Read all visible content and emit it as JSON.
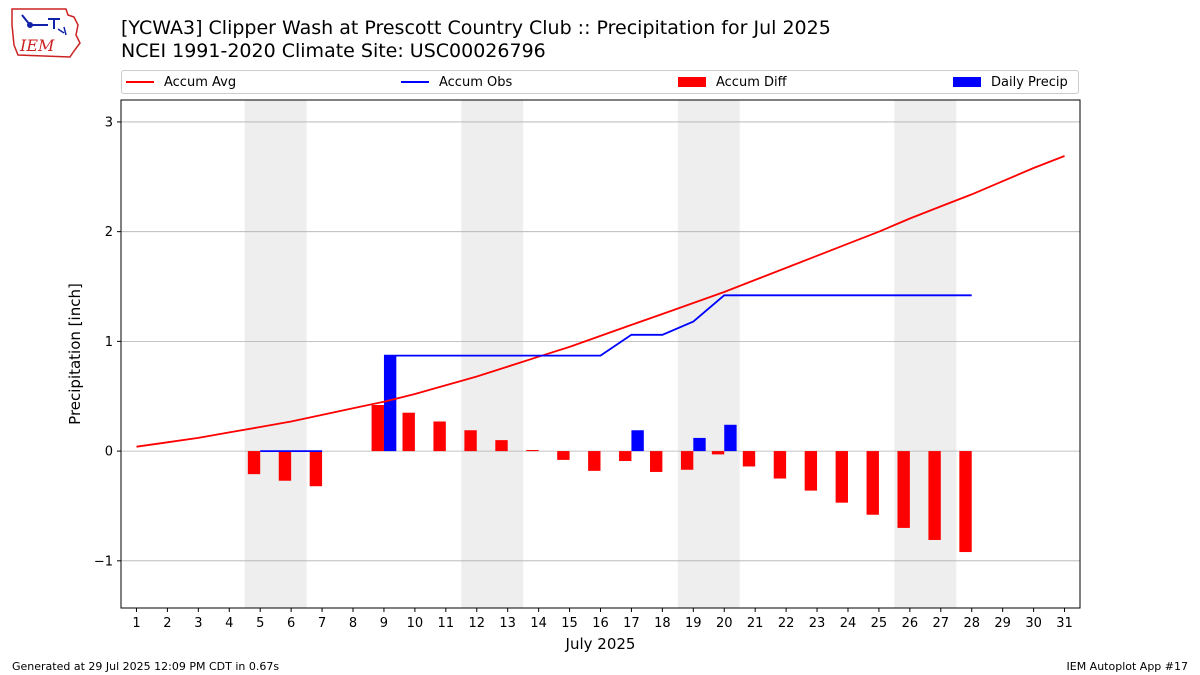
{
  "header": {
    "title": "[YCWA3] Clipper Wash at Prescott Country Club :: Precipitation for Jul 2025",
    "subtitle": "NCEI 1991-2020 Climate Site: USC00026796",
    "logo_text": "IEM"
  },
  "footer": {
    "left": "Generated at 29 Jul 2025 12:09 PM CDT in 0.67s",
    "right": "IEM Autoplot App #17"
  },
  "colors": {
    "accum_avg": "#ff0000",
    "accum_obs": "#0000ff",
    "accum_diff": "#ff0000",
    "daily_precip": "#0000ff",
    "weekend_shade": "#eeeeee",
    "grid": "#b0b0b0"
  },
  "chart_data": {
    "type": "bar",
    "xlabel": "July 2025",
    "ylabel": "Precipitation [inch]",
    "xlim": [
      0.5,
      31.5
    ],
    "ylim": [
      -1.43,
      3.2
    ],
    "yticks": [
      -1,
      0,
      1,
      2,
      3
    ],
    "ytick_labels": [
      "−1",
      "0",
      "1",
      "2",
      "3"
    ],
    "x": [
      1,
      2,
      3,
      4,
      5,
      6,
      7,
      8,
      9,
      10,
      11,
      12,
      13,
      14,
      15,
      16,
      17,
      18,
      19,
      20,
      21,
      22,
      23,
      24,
      25,
      26,
      27,
      28,
      29,
      30,
      31
    ],
    "xtick_labels": [
      "1",
      "2",
      "3",
      "4",
      "5",
      "6",
      "7",
      "8",
      "9",
      "10",
      "11",
      "12",
      "13",
      "14",
      "15",
      "16",
      "17",
      "18",
      "19",
      "20",
      "21",
      "22",
      "23",
      "24",
      "25",
      "26",
      "27",
      "28",
      "29",
      "30",
      "31"
    ],
    "weekend_spans": [
      [
        5,
        6
      ],
      [
        12,
        13
      ],
      [
        19,
        20
      ],
      [
        26,
        27
      ]
    ],
    "grid": "y",
    "legend_position": "top",
    "legend": [
      "Accum Avg",
      "Accum Obs",
      "Accum Diff",
      "Daily Precip"
    ],
    "series": [
      {
        "name": "Accum Avg",
        "kind": "line",
        "x": [
          1,
          2,
          3,
          4,
          5,
          6,
          7,
          8,
          9,
          10,
          11,
          12,
          13,
          14,
          15,
          16,
          17,
          18,
          19,
          20,
          21,
          22,
          23,
          24,
          25,
          26,
          27,
          28,
          29,
          30,
          31
        ],
        "values": [
          0.04,
          0.08,
          0.12,
          0.17,
          0.22,
          0.27,
          0.33,
          0.39,
          0.45,
          0.52,
          0.6,
          0.68,
          0.77,
          0.86,
          0.95,
          1.05,
          1.15,
          1.25,
          1.35,
          1.45,
          1.56,
          1.67,
          1.78,
          1.89,
          2.0,
          2.12,
          2.23,
          2.34,
          2.46,
          2.58,
          2.69
        ]
      },
      {
        "name": "Accum Obs",
        "kind": "line",
        "x": [
          5,
          6,
          7,
          8,
          9,
          10,
          11,
          12,
          13,
          14,
          15,
          16,
          17,
          18,
          19,
          20,
          21,
          22,
          23,
          24,
          25,
          26,
          27,
          28
        ],
        "values": [
          0,
          0,
          0,
          null,
          0.87,
          0.87,
          0.87,
          0.87,
          0.87,
          0.87,
          0.87,
          0.87,
          1.06,
          1.06,
          1.18,
          1.42,
          1.42,
          1.42,
          1.42,
          1.42,
          1.42,
          1.42,
          1.42,
          1.42
        ]
      },
      {
        "name": "Accum Diff",
        "kind": "bar",
        "x": [
          5,
          6,
          7,
          9,
          10,
          11,
          12,
          13,
          14,
          15,
          16,
          17,
          18,
          19,
          20,
          21,
          22,
          23,
          24,
          25,
          26,
          27,
          28
        ],
        "values": [
          -0.21,
          -0.27,
          -0.32,
          0.42,
          0.35,
          0.27,
          0.19,
          0.1,
          0.01,
          -0.08,
          -0.18,
          -0.09,
          -0.19,
          -0.17,
          -0.03,
          -0.14,
          -0.25,
          -0.36,
          -0.47,
          -0.58,
          -0.7,
          -0.81,
          -0.92
        ]
      },
      {
        "name": "Daily Precip",
        "kind": "bar",
        "x": [
          9,
          17,
          19,
          20
        ],
        "values": [
          0.87,
          0.19,
          0.12,
          0.24
        ]
      }
    ]
  }
}
